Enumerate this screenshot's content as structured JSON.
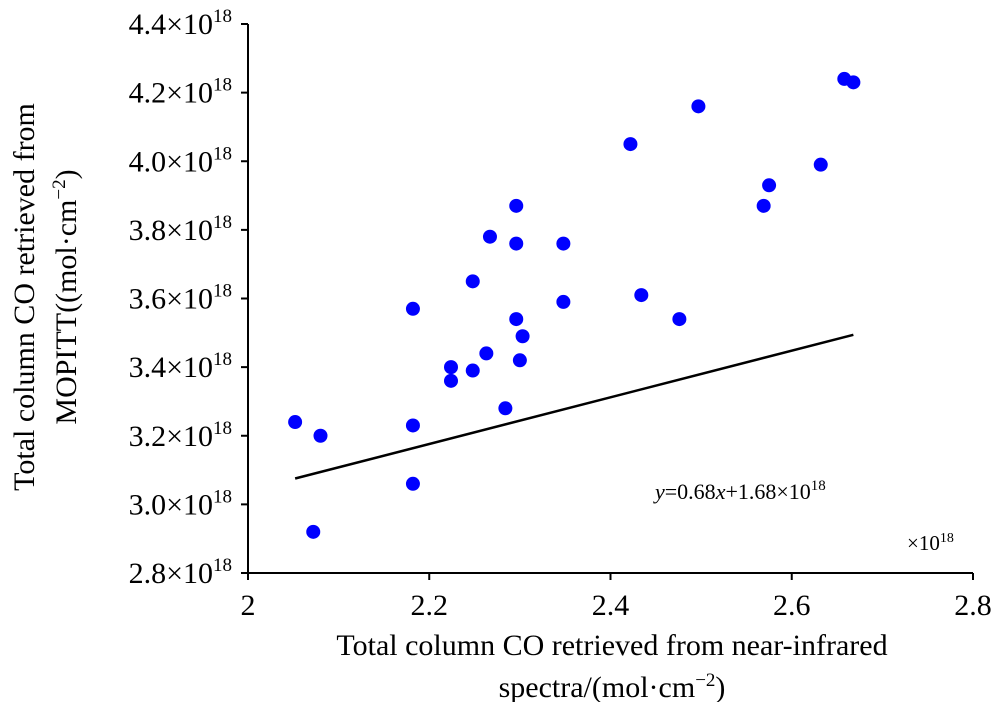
{
  "chart_data": {
    "type": "scatter",
    "title": "",
    "xlabel": {
      "line1": "Total column CO retrieved from near-infrared",
      "line2_prefix": "spectra/(mol·cm",
      "line2_sup": "−2",
      "line2_suffix": ")"
    },
    "ylabel": {
      "line1": "Total column CO retrieved from",
      "line2_prefix": "MOPITT((mol·cm",
      "line2_sup": "−2",
      "line2_suffix": ")"
    },
    "x_multiplier": {
      "base": "×10",
      "exp": "18"
    },
    "xlim": [
      2.0,
      2.8
    ],
    "ylim": [
      2.8,
      4.4
    ],
    "x_ticks": [
      {
        "value": 2.0,
        "label": "2"
      },
      {
        "value": 2.2,
        "label": "2.2"
      },
      {
        "value": 2.4,
        "label": "2.4"
      },
      {
        "value": 2.6,
        "label": "2.6"
      },
      {
        "value": 2.8,
        "label": "2.8"
      }
    ],
    "y_ticks": [
      {
        "value": 2.8,
        "mant": "2.8×10",
        "exp": "18"
      },
      {
        "value": 3.0,
        "mant": "3.0×10",
        "exp": "18"
      },
      {
        "value": 3.2,
        "mant": "3.2×10",
        "exp": "18"
      },
      {
        "value": 3.4,
        "mant": "3.4×10",
        "exp": "18"
      },
      {
        "value": 3.6,
        "mant": "3.6×10",
        "exp": "18"
      },
      {
        "value": 3.8,
        "mant": "3.8×10",
        "exp": "18"
      },
      {
        "value": 4.0,
        "mant": "4.0×10",
        "exp": "18"
      },
      {
        "value": 4.2,
        "mant": "4.2×10",
        "exp": "18"
      },
      {
        "value": 4.4,
        "mant": "4.4×10",
        "exp": "18"
      }
    ],
    "grid": false,
    "point_color": "#0000ff",
    "line_color": "#000000",
    "points": [
      {
        "x": 2.052,
        "y": 3.24
      },
      {
        "x": 2.072,
        "y": 2.92
      },
      {
        "x": 2.08,
        "y": 3.2
      },
      {
        "x": 2.182,
        "y": 3.57
      },
      {
        "x": 2.182,
        "y": 3.23
      },
      {
        "x": 2.182,
        "y": 3.06
      },
      {
        "x": 2.224,
        "y": 3.4
      },
      {
        "x": 2.224,
        "y": 3.36
      },
      {
        "x": 2.248,
        "y": 3.65
      },
      {
        "x": 2.248,
        "y": 3.39
      },
      {
        "x": 2.263,
        "y": 3.44
      },
      {
        "x": 2.267,
        "y": 3.78
      },
      {
        "x": 2.284,
        "y": 3.28
      },
      {
        "x": 2.296,
        "y": 3.87
      },
      {
        "x": 2.296,
        "y": 3.76
      },
      {
        "x": 2.296,
        "y": 3.54
      },
      {
        "x": 2.3,
        "y": 3.42
      },
      {
        "x": 2.303,
        "y": 3.49
      },
      {
        "x": 2.348,
        "y": 3.76
      },
      {
        "x": 2.348,
        "y": 3.59
      },
      {
        "x": 2.422,
        "y": 4.05
      },
      {
        "x": 2.434,
        "y": 3.61
      },
      {
        "x": 2.476,
        "y": 3.54
      },
      {
        "x": 2.497,
        "y": 4.16
      },
      {
        "x": 2.569,
        "y": 3.87
      },
      {
        "x": 2.575,
        "y": 3.93
      },
      {
        "x": 2.632,
        "y": 3.99
      },
      {
        "x": 2.658,
        "y": 4.24
      },
      {
        "x": 2.668,
        "y": 4.23
      }
    ],
    "trendline": {
      "slope": 0.68,
      "intercept": 1.68,
      "x_range": [
        2.052,
        2.668
      ],
      "equation": {
        "y": "y",
        "eq": "=0.68",
        "x": "x",
        "rest": "+1.68×10",
        "exp": "18"
      }
    }
  }
}
